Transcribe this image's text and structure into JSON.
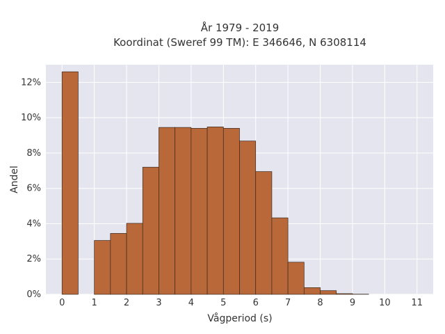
{
  "chart_data": {
    "type": "bar",
    "title_line1": "År 1979 - 2019",
    "title_line2": "Koordinat (Sweref 99 TM): E 346646, N 6308114",
    "xlabel": "Vågperiod (s)",
    "ylabel": "Andel",
    "xlim": [
      -0.5,
      11.5
    ],
    "ylim": [
      0,
      13
    ],
    "x_ticks": [
      "0",
      "1",
      "2",
      "3",
      "4",
      "5",
      "6",
      "7",
      "8",
      "9",
      "10",
      "11"
    ],
    "y_ticks": [
      "0%",
      "2%",
      "4%",
      "6%",
      "8%",
      "10%",
      "12%"
    ],
    "bin_width": 0.5,
    "bins": [
      {
        "start": 0.0,
        "value": 12.6
      },
      {
        "start": 1.0,
        "value": 3.05
      },
      {
        "start": 1.5,
        "value": 3.45
      },
      {
        "start": 2.0,
        "value": 4.02
      },
      {
        "start": 2.5,
        "value": 7.2
      },
      {
        "start": 3.0,
        "value": 9.45
      },
      {
        "start": 3.5,
        "value": 9.45
      },
      {
        "start": 4.0,
        "value": 9.4
      },
      {
        "start": 4.5,
        "value": 9.48
      },
      {
        "start": 5.0,
        "value": 9.4
      },
      {
        "start": 5.5,
        "value": 8.68
      },
      {
        "start": 6.0,
        "value": 6.95
      },
      {
        "start": 6.5,
        "value": 4.33
      },
      {
        "start": 7.0,
        "value": 1.82
      },
      {
        "start": 7.5,
        "value": 0.38
      },
      {
        "start": 8.0,
        "value": 0.21
      },
      {
        "start": 8.5,
        "value": 0.04
      },
      {
        "start": 9.0,
        "value": 0.01
      }
    ],
    "grid": true,
    "colors": {
      "plot_background": "#e5e5ef",
      "grid": "#ffffff",
      "bar_fill": "#b9683a",
      "bar_stroke": "#3a2a20"
    }
  }
}
